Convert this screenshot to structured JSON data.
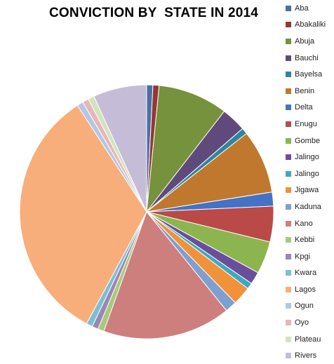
{
  "chart_data": {
    "type": "pie",
    "title": "CONVICTION BY  STATE IN 2014",
    "legend_position": "right",
    "start_angle_deg": 0,
    "direction": "clockwise",
    "slices": [
      {
        "label": "Aba",
        "value": 0.8,
        "color": "#4a6fa5"
      },
      {
        "label": "Abakaliki",
        "value": 0.8,
        "color": "#953735"
      },
      {
        "label": "Abuja",
        "value": 9.0,
        "color": "#76923c"
      },
      {
        "label": "Bauchi",
        "value": 3.2,
        "color": "#604a7b"
      },
      {
        "label": "Bayelsa",
        "value": 0.8,
        "color": "#31859c"
      },
      {
        "label": "Benin",
        "value": 8.2,
        "color": "#c0782e"
      },
      {
        "label": "Delta",
        "value": 1.8,
        "color": "#4472c4"
      },
      {
        "label": "Enugu",
        "value": 4.6,
        "color": "#b94a48"
      },
      {
        "label": "Gombe",
        "value": 4.2,
        "color": "#8db54f"
      },
      {
        "label": "Jalingo",
        "value": 1.6,
        "color": "#6b4e9b"
      },
      {
        "label": "Jalingo",
        "value": 0.8,
        "color": "#3fa8c0"
      },
      {
        "label": "Jigawa",
        "value": 2.4,
        "color": "#f0923a"
      },
      {
        "label": "Kaduna",
        "value": 1.5,
        "color": "#7f9fcf"
      },
      {
        "label": "Kano",
        "value": 16.5,
        "color": "#cd7f7e"
      },
      {
        "label": "Kebbi",
        "value": 0.8,
        "color": "#a9c97a"
      },
      {
        "label": "Kpgi",
        "value": 0.8,
        "color": "#9a86b7"
      },
      {
        "label": "Kwara",
        "value": 0.8,
        "color": "#7cbfd3"
      },
      {
        "label": "Lagos",
        "value": 33.4,
        "color": "#f7ae7b"
      },
      {
        "label": "Ogun",
        "value": 0.8,
        "color": "#b3c6e5"
      },
      {
        "label": "Oyo",
        "value": 0.8,
        "color": "#e6b7b6"
      },
      {
        "label": "Plateau",
        "value": 0.8,
        "color": "#d3e3bd"
      },
      {
        "label": "Rivers",
        "value": 6.9,
        "color": "#c5bcd8"
      }
    ]
  }
}
